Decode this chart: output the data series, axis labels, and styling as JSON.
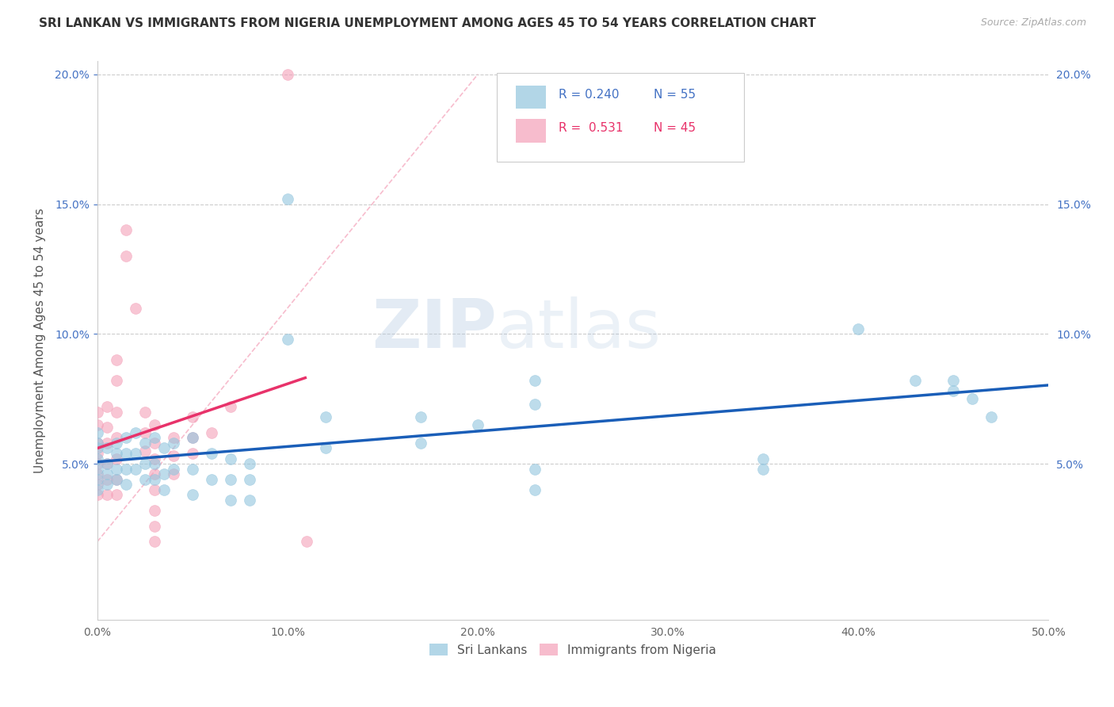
{
  "title": "SRI LANKAN VS IMMIGRANTS FROM NIGERIA UNEMPLOYMENT AMONG AGES 45 TO 54 YEARS CORRELATION CHART",
  "source": "Source: ZipAtlas.com",
  "ylabel": "Unemployment Among Ages 45 to 54 years",
  "xlim": [
    0.0,
    0.5
  ],
  "ylim": [
    -0.01,
    0.205
  ],
  "xticks": [
    0.0,
    0.1,
    0.2,
    0.3,
    0.4,
    0.5
  ],
  "xticklabels": [
    "0.0%",
    "10.0%",
    "20.0%",
    "30.0%",
    "40.0%",
    "50.0%"
  ],
  "yticks_left": [
    0.05,
    0.1,
    0.15,
    0.2
  ],
  "yticks_right": [
    0.05,
    0.1,
    0.15,
    0.2
  ],
  "yticklabels": [
    "5.0%",
    "10.0%",
    "15.0%",
    "20.0%"
  ],
  "sri_lanka_color": "#92c5de",
  "nigeria_color": "#f4a0b8",
  "sri_lanka_line_color": "#1a5eb8",
  "nigeria_line_color": "#e8326a",
  "sri_lanka_label": "Sri Lankans",
  "nigeria_label": "Immigrants from Nigeria",
  "watermark_zip": "ZIP",
  "watermark_atlas": "atlas",
  "background_color": "#ffffff",
  "grid_color": "#cccccc",
  "sl_legend_color": "#4472c4",
  "ng_legend_color": "#e8326a",
  "sri_lanka_scatter": [
    [
      0.0,
      0.056
    ],
    [
      0.0,
      0.052
    ],
    [
      0.0,
      0.048
    ],
    [
      0.0,
      0.044
    ],
    [
      0.0,
      0.04
    ],
    [
      0.0,
      0.062
    ],
    [
      0.0,
      0.058
    ],
    [
      0.005,
      0.056
    ],
    [
      0.005,
      0.05
    ],
    [
      0.005,
      0.046
    ],
    [
      0.005,
      0.042
    ],
    [
      0.01,
      0.058
    ],
    [
      0.01,
      0.054
    ],
    [
      0.01,
      0.048
    ],
    [
      0.01,
      0.044
    ],
    [
      0.015,
      0.06
    ],
    [
      0.015,
      0.054
    ],
    [
      0.015,
      0.048
    ],
    [
      0.015,
      0.042
    ],
    [
      0.02,
      0.062
    ],
    [
      0.02,
      0.054
    ],
    [
      0.02,
      0.048
    ],
    [
      0.025,
      0.058
    ],
    [
      0.025,
      0.05
    ],
    [
      0.025,
      0.044
    ],
    [
      0.03,
      0.06
    ],
    [
      0.03,
      0.05
    ],
    [
      0.03,
      0.044
    ],
    [
      0.035,
      0.056
    ],
    [
      0.035,
      0.046
    ],
    [
      0.035,
      0.04
    ],
    [
      0.04,
      0.058
    ],
    [
      0.04,
      0.048
    ],
    [
      0.05,
      0.06
    ],
    [
      0.05,
      0.048
    ],
    [
      0.05,
      0.038
    ],
    [
      0.06,
      0.054
    ],
    [
      0.06,
      0.044
    ],
    [
      0.07,
      0.052
    ],
    [
      0.07,
      0.044
    ],
    [
      0.07,
      0.036
    ],
    [
      0.08,
      0.05
    ],
    [
      0.08,
      0.044
    ],
    [
      0.08,
      0.036
    ],
    [
      0.1,
      0.152
    ],
    [
      0.1,
      0.098
    ],
    [
      0.12,
      0.068
    ],
    [
      0.12,
      0.056
    ],
    [
      0.17,
      0.068
    ],
    [
      0.17,
      0.058
    ],
    [
      0.2,
      0.065
    ],
    [
      0.23,
      0.082
    ],
    [
      0.23,
      0.073
    ],
    [
      0.23,
      0.048
    ],
    [
      0.23,
      0.04
    ],
    [
      0.35,
      0.052
    ],
    [
      0.35,
      0.048
    ],
    [
      0.4,
      0.102
    ],
    [
      0.43,
      0.082
    ],
    [
      0.45,
      0.082
    ],
    [
      0.45,
      0.078
    ],
    [
      0.46,
      0.075
    ],
    [
      0.47,
      0.068
    ]
  ],
  "nigeria_scatter": [
    [
      0.0,
      0.058
    ],
    [
      0.0,
      0.054
    ],
    [
      0.0,
      0.05
    ],
    [
      0.0,
      0.046
    ],
    [
      0.0,
      0.042
    ],
    [
      0.0,
      0.038
    ],
    [
      0.0,
      0.07
    ],
    [
      0.0,
      0.065
    ],
    [
      0.005,
      0.072
    ],
    [
      0.005,
      0.064
    ],
    [
      0.005,
      0.058
    ],
    [
      0.005,
      0.05
    ],
    [
      0.005,
      0.044
    ],
    [
      0.005,
      0.038
    ],
    [
      0.01,
      0.09
    ],
    [
      0.01,
      0.082
    ],
    [
      0.01,
      0.07
    ],
    [
      0.01,
      0.06
    ],
    [
      0.01,
      0.052
    ],
    [
      0.01,
      0.044
    ],
    [
      0.01,
      0.038
    ],
    [
      0.015,
      0.14
    ],
    [
      0.015,
      0.13
    ],
    [
      0.02,
      0.11
    ],
    [
      0.025,
      0.07
    ],
    [
      0.025,
      0.062
    ],
    [
      0.025,
      0.055
    ],
    [
      0.03,
      0.065
    ],
    [
      0.03,
      0.058
    ],
    [
      0.03,
      0.052
    ],
    [
      0.03,
      0.046
    ],
    [
      0.03,
      0.04
    ],
    [
      0.03,
      0.032
    ],
    [
      0.03,
      0.026
    ],
    [
      0.03,
      0.02
    ],
    [
      0.04,
      0.06
    ],
    [
      0.04,
      0.053
    ],
    [
      0.04,
      0.046
    ],
    [
      0.05,
      0.068
    ],
    [
      0.05,
      0.06
    ],
    [
      0.05,
      0.054
    ],
    [
      0.06,
      0.062
    ],
    [
      0.07,
      0.072
    ],
    [
      0.1,
      0.2
    ],
    [
      0.11,
      0.02
    ]
  ],
  "title_fontsize": 11,
  "axis_label_fontsize": 11,
  "tick_fontsize": 10
}
